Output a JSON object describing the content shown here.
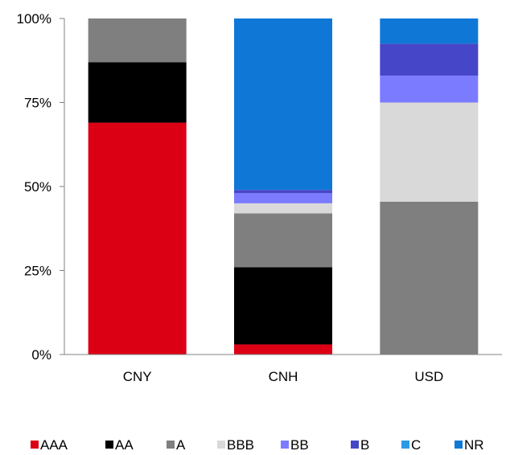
{
  "chart_data": {
    "type": "bar",
    "stacked": true,
    "percent": true,
    "categories": [
      "CNY",
      "CNH",
      "USD"
    ],
    "yticks": [
      "0%",
      "25%",
      "50%",
      "75%",
      "100%"
    ],
    "ylim": [
      0,
      100
    ],
    "legend_position": "bottom",
    "grid": false,
    "series": [
      {
        "name": "AAA",
        "color": "#dc0014",
        "values": [
          69,
          3,
          0
        ]
      },
      {
        "name": "AA",
        "color": "#000000",
        "values": [
          18,
          23,
          0
        ]
      },
      {
        "name": "A",
        "color": "#7f7f7f",
        "values": [
          13,
          16,
          45.5
        ]
      },
      {
        "name": "BBB",
        "color": "#d9d9d9",
        "values": [
          0,
          3,
          29.5
        ]
      },
      {
        "name": "BB",
        "color": "#7b7bff",
        "values": [
          0,
          3,
          8
        ]
      },
      {
        "name": "B",
        "color": "#4646c8",
        "values": [
          0,
          1,
          9.5
        ]
      },
      {
        "name": "C",
        "color": "#2b9ae6",
        "values": [
          0,
          0,
          0
        ]
      },
      {
        "name": "NR",
        "color": "#0f78d7",
        "values": [
          0,
          51,
          7.5
        ]
      }
    ]
  }
}
